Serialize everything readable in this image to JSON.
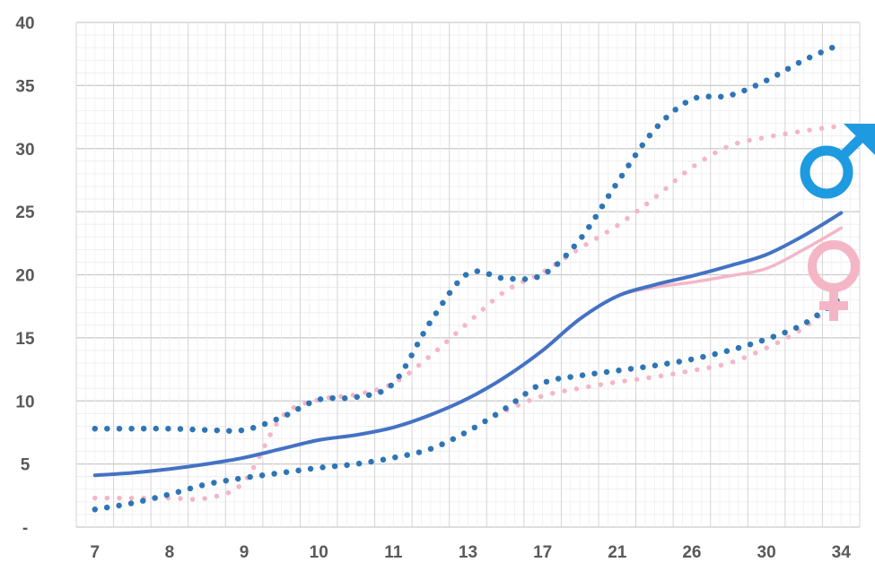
{
  "chart_data": {
    "type": "line",
    "title": "",
    "xlabel": "",
    "ylabel": "",
    "categories": [
      "7",
      "",
      "8",
      "",
      "9",
      "",
      "10",
      "",
      "11",
      "",
      "13",
      "",
      "17",
      "",
      "21",
      "",
      "26",
      "",
      "30",
      "",
      "34"
    ],
    "ylim": [
      0,
      40
    ],
    "y_ticks": [
      "-",
      "5",
      "10",
      "15",
      "20",
      "25",
      "30",
      "35",
      "40"
    ],
    "grid": true,
    "legend": "symbols-right",
    "series": [
      {
        "style": "solid",
        "color": "#4472C4",
        "values": [
          4.1,
          4.3,
          4.6,
          5.0,
          5.5,
          6.2,
          6.9,
          7.3,
          7.9,
          8.9,
          10.2,
          11.9,
          14.0,
          16.5,
          18.3,
          19.2,
          19.9,
          20.7,
          21.6,
          23.1,
          24.9
        ]
      },
      {
        "style": "solid",
        "color": "#F4B6C7",
        "values": [
          4.1,
          4.3,
          4.6,
          5.0,
          5.5,
          6.2,
          6.9,
          7.3,
          7.9,
          8.9,
          10.2,
          11.9,
          14.0,
          16.5,
          18.3,
          19.0,
          19.4,
          19.9,
          20.5,
          22.0,
          23.7
        ]
      },
      {
        "style": "dotted",
        "color": "#2E75B6",
        "values": [
          7.8,
          7.8,
          7.8,
          7.7,
          7.7,
          8.7,
          10.1,
          10.3,
          11.4,
          16.3,
          20.1,
          19.7,
          20.0,
          22.8,
          27.3,
          31.5,
          33.9,
          34.2,
          35.4,
          37.0,
          38.3
        ]
      },
      {
        "style": "dotted",
        "color": "#F4B6C7",
        "values": [
          2.3,
          2.3,
          2.3,
          2.3,
          3.6,
          8.7,
          10.1,
          10.5,
          11.4,
          13.6,
          16.2,
          18.7,
          20.2,
          22.1,
          23.9,
          26.1,
          28.5,
          30.2,
          30.9,
          31.4,
          31.8
        ]
      },
      {
        "style": "dotted",
        "color": "#2E75B6",
        "values": [
          1.4,
          1.9,
          2.6,
          3.4,
          3.9,
          4.3,
          4.7,
          5.0,
          5.5,
          6.2,
          7.6,
          9.4,
          11.4,
          12.0,
          12.4,
          12.8,
          13.3,
          14.0,
          14.9,
          16.1,
          18.2
        ]
      },
      {
        "style": "dotted",
        "color": "#F4B6C7",
        "values": [
          1.4,
          1.9,
          2.6,
          3.4,
          3.9,
          4.3,
          4.7,
          5.0,
          5.5,
          6.2,
          7.6,
          9.2,
          10.4,
          11.0,
          11.5,
          11.9,
          12.4,
          13.0,
          14.2,
          15.8,
          18.2
        ]
      }
    ],
    "symbols": [
      {
        "glyph": "♂",
        "color": "#1E9BE0",
        "name": "male-symbol-icon"
      },
      {
        "glyph": "♀",
        "color": "#F4B6C7",
        "name": "female-symbol-icon"
      }
    ]
  }
}
